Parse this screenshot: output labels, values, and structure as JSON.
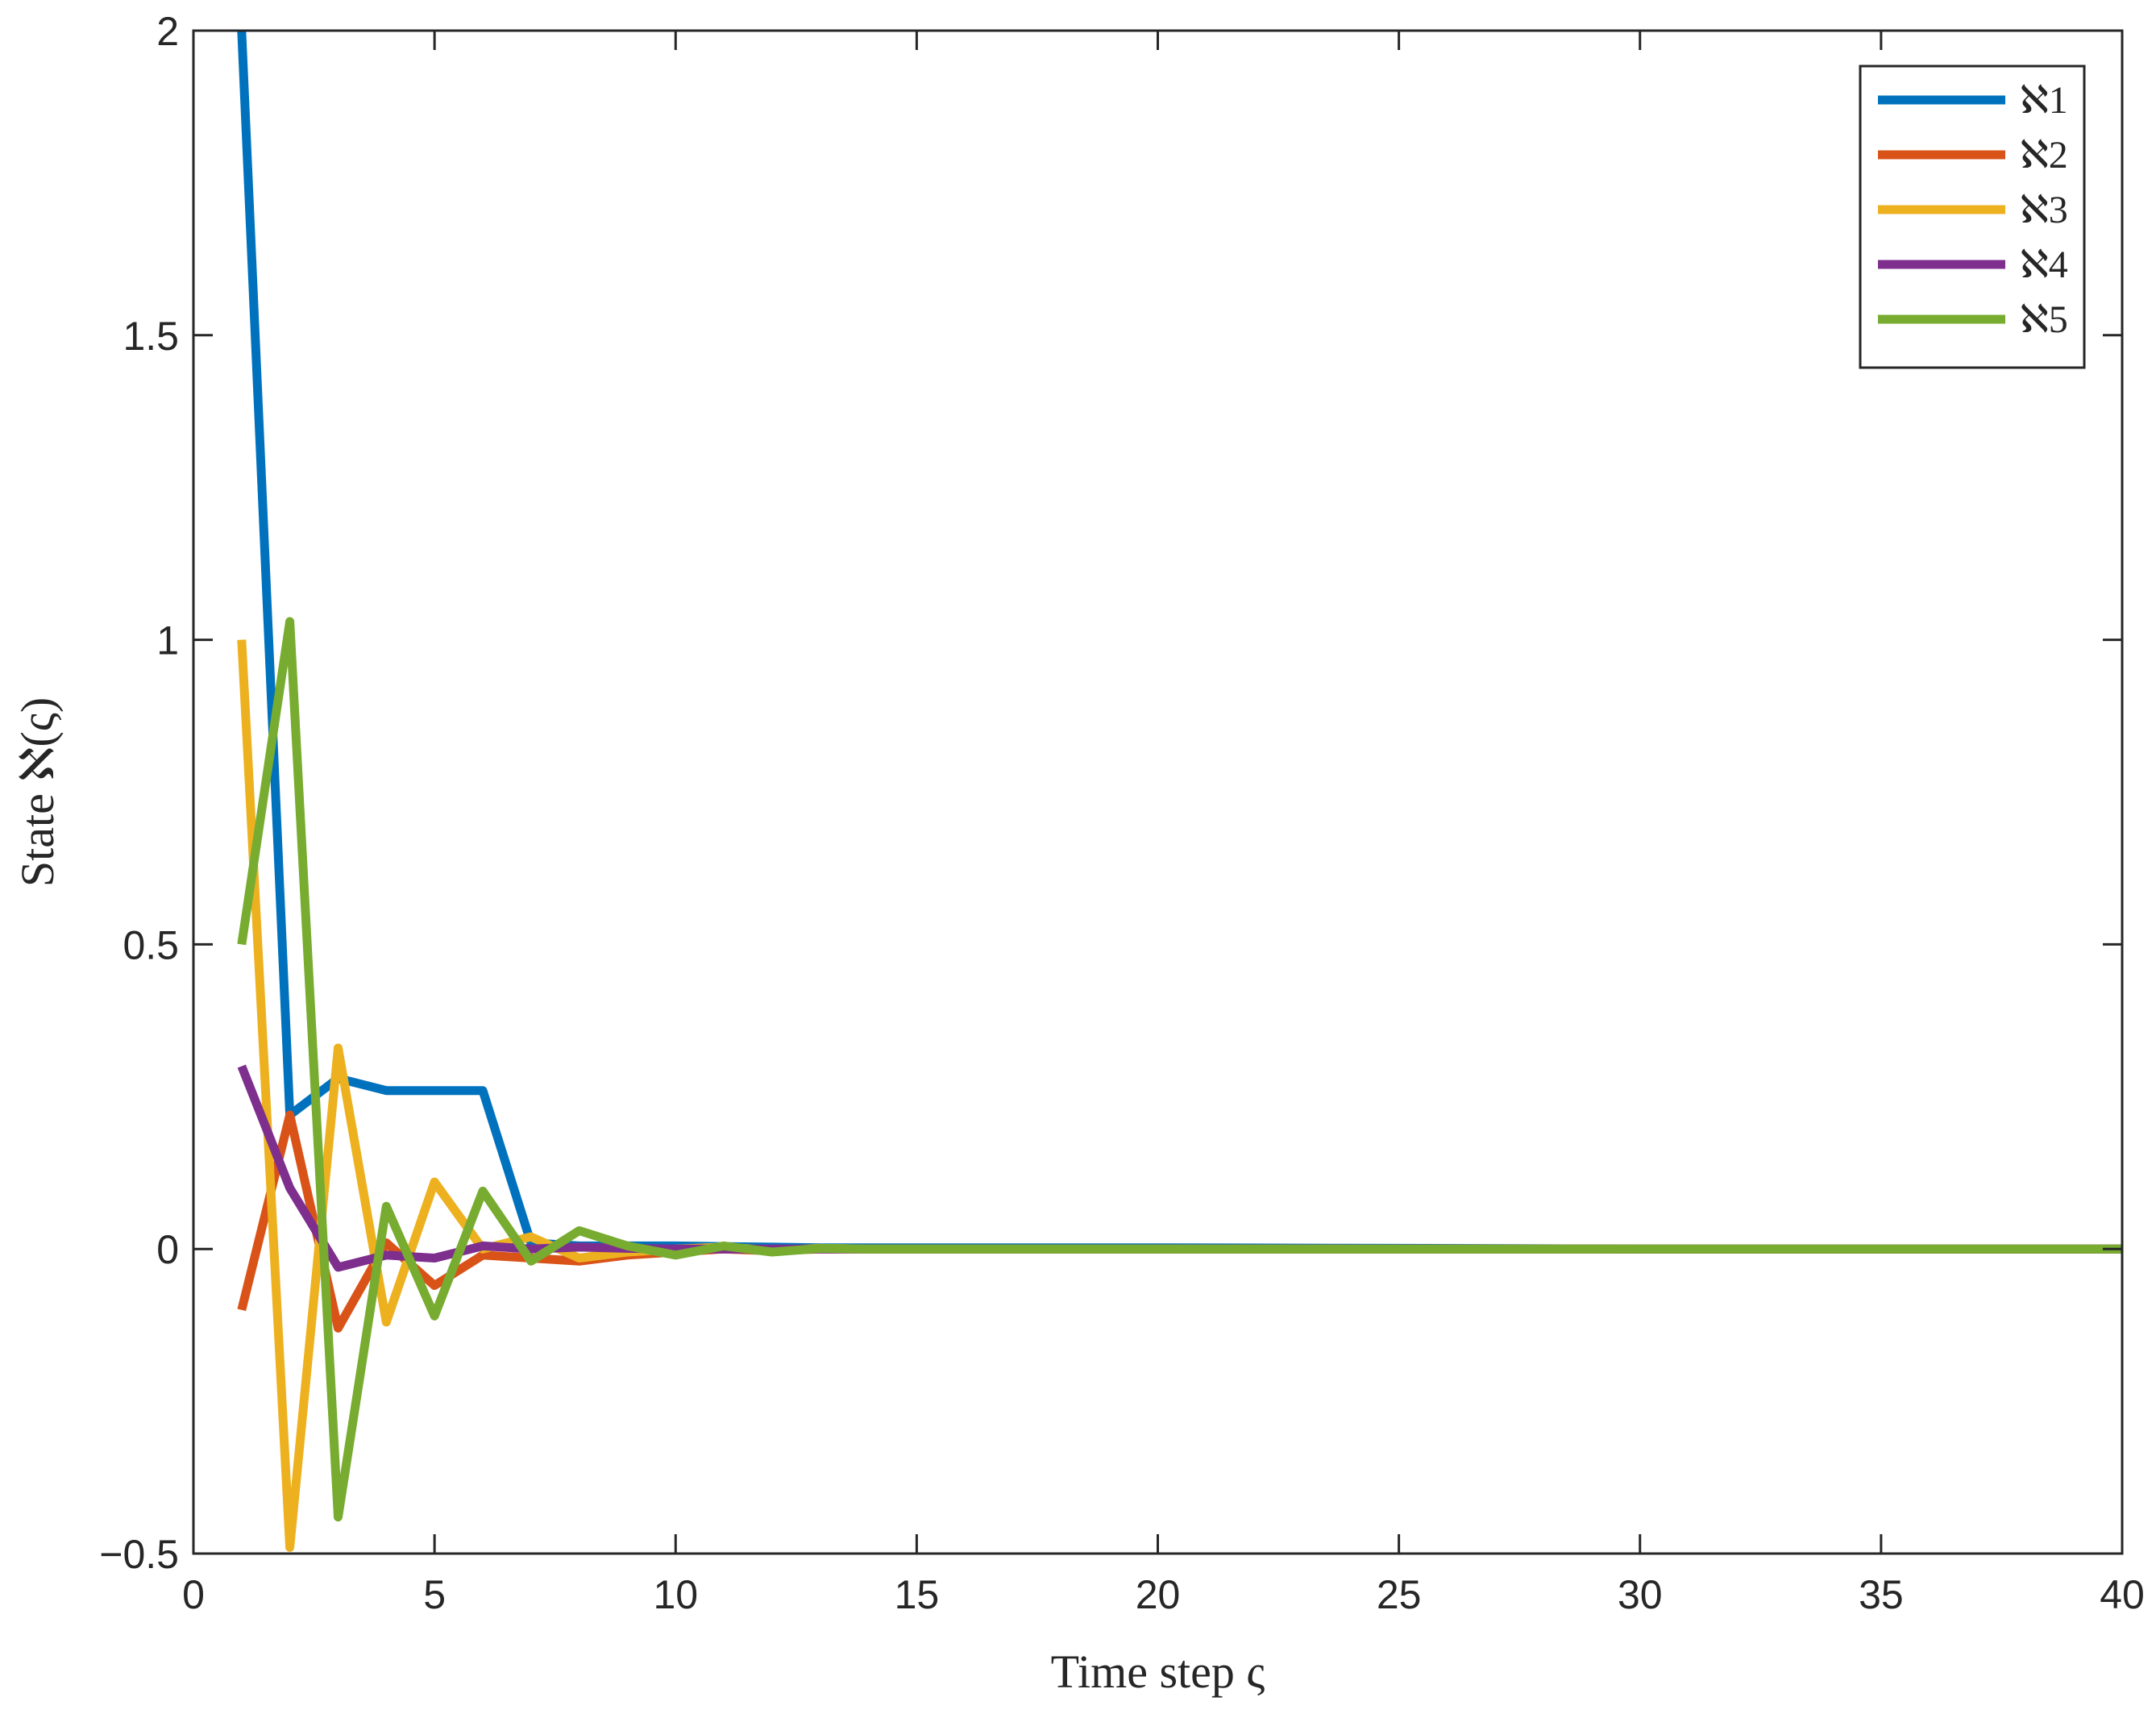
{
  "chart_data": {
    "type": "line",
    "xlabel": "Time step ς",
    "ylabel": "State ℵ(ς)",
    "xlim": [
      0,
      40
    ],
    "ylim": [
      -0.5,
      2
    ],
    "xticks": [
      "0",
      "5",
      "10",
      "15",
      "20",
      "25",
      "30",
      "35",
      "40"
    ],
    "yticks": [
      "−0.5",
      "0",
      "0.5",
      "1",
      "1.5",
      "2"
    ],
    "grid": false,
    "legend_position": "top-right",
    "series": [
      {
        "name": "ℵ1",
        "color": "#0072BD",
        "x": [
          1,
          2,
          3,
          4,
          5,
          6,
          7,
          8,
          9,
          10,
          11,
          12,
          13,
          14,
          15,
          20,
          25,
          30,
          35,
          40
        ],
        "y": [
          2.0,
          0.22,
          0.28,
          0.26,
          0.26,
          0.26,
          0.01,
          0.005,
          0.005,
          0.005,
          0.004,
          0.003,
          0.002,
          0.002,
          0.002,
          0.002,
          0.001,
          0.0,
          0.0,
          0.0
        ]
      },
      {
        "name": "ℵ2",
        "color": "#D95319",
        "x": [
          1,
          2,
          3,
          4,
          5,
          6,
          7,
          8,
          9,
          10,
          11,
          12,
          13,
          14,
          15,
          20,
          25,
          30,
          35,
          40
        ],
        "y": [
          -0.1,
          0.22,
          -0.13,
          0.01,
          -0.06,
          -0.01,
          -0.015,
          -0.02,
          -0.01,
          -0.005,
          0.0,
          -0.003,
          0.0,
          0.0,
          0.0,
          0.0,
          0.0,
          0.0,
          0.0,
          0.0
        ]
      },
      {
        "name": "ℵ3",
        "color": "#EDB120",
        "x": [
          1,
          2,
          3,
          4,
          5,
          6,
          7,
          8,
          9,
          10,
          11,
          12,
          13,
          14,
          15,
          20,
          25,
          30,
          35,
          40
        ],
        "y": [
          1.0,
          -0.49,
          0.33,
          -0.12,
          0.11,
          0.0,
          0.02,
          -0.015,
          -0.005,
          0.0,
          0.003,
          -0.002,
          0.001,
          0.0,
          0.0,
          0.0,
          0.0,
          0.0,
          0.0,
          0.0
        ]
      },
      {
        "name": "ℵ4",
        "color": "#7E2F8E",
        "x": [
          1,
          2,
          3,
          4,
          5,
          6,
          7,
          8,
          9,
          10,
          11,
          12,
          13,
          14,
          15,
          20,
          25,
          30,
          35,
          40
        ],
        "y": [
          0.3,
          0.1,
          -0.03,
          -0.01,
          -0.015,
          0.005,
          0.0,
          0.003,
          0.001,
          0.0,
          0.0,
          0.0,
          0.0,
          0.0,
          0.0,
          0.0,
          0.0,
          0.0,
          0.0,
          0.0
        ]
      },
      {
        "name": "ℵ5",
        "color": "#77AC30",
        "x": [
          1,
          2,
          3,
          4,
          5,
          6,
          7,
          8,
          9,
          10,
          11,
          12,
          13,
          14,
          15,
          20,
          25,
          30,
          35,
          40
        ],
        "y": [
          0.5,
          1.03,
          -0.44,
          0.07,
          -0.11,
          0.095,
          -0.02,
          0.03,
          0.005,
          -0.01,
          0.005,
          -0.005,
          0.001,
          0.0,
          0.0,
          0.0,
          0.0,
          0.0,
          0.0,
          0.0
        ]
      }
    ]
  }
}
